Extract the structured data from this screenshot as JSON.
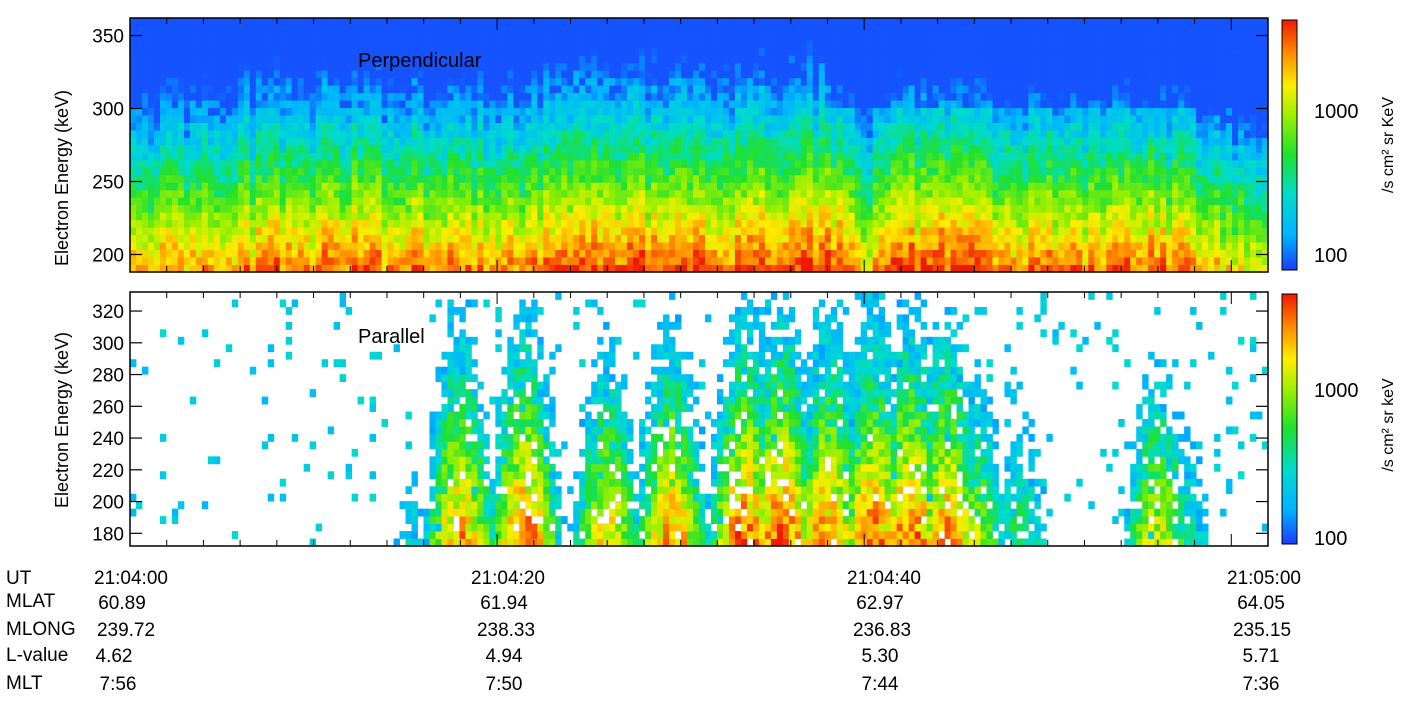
{
  "chart_data": [
    {
      "type": "heatmap",
      "panel_label": "Perpendicular",
      "ylabel": "Electron Energy (keV)",
      "ylim": [
        188,
        362
      ],
      "yticks": [
        200,
        250,
        300,
        350
      ],
      "xlim": [
        "21:04:00",
        "21:05:02"
      ],
      "colorbar": {
        "label": "/s cm² sr KeV",
        "scale": "log",
        "range": [
          100,
          3500
        ],
        "tick_labels": [
          "100",
          "1000"
        ]
      },
      "flux_profile_seconds": [
        0,
        4,
        8,
        12,
        16,
        20,
        24,
        28,
        32,
        36,
        38,
        40,
        42,
        44,
        48,
        52,
        56,
        60
      ],
      "flux_profile_low_energy": [
        1800,
        2200,
        2600,
        2800,
        2600,
        2200,
        2800,
        3000,
        2800,
        3400,
        3500,
        1800,
        3000,
        3200,
        2600,
        2400,
        2800,
        1500
      ]
    },
    {
      "type": "heatmap",
      "panel_label": "Parallel",
      "ylabel": "Electron Energy (keV)",
      "ylim": [
        172,
        332
      ],
      "yticks": [
        180,
        200,
        220,
        240,
        260,
        280,
        300,
        320
      ],
      "xlim": [
        "21:04:00",
        "21:05:02"
      ],
      "colorbar": {
        "label": "/s cm² sr keV",
        "scale": "log",
        "range": [
          100,
          3500
        ],
        "tick_labels": [
          "100",
          "1000"
        ]
      },
      "burst_times_seconds": [
        15.5,
        18,
        21.5,
        26,
        29.5,
        33.5,
        35.5,
        38,
        40.5,
        42.5,
        44.5,
        46,
        48.5,
        56,
        57.5
      ],
      "burst_peak_flux": [
        300,
        2500,
        3000,
        1800,
        2500,
        3200,
        3500,
        2800,
        3000,
        3200,
        2800,
        1200,
        600,
        1500,
        500
      ]
    }
  ],
  "orbit_table": {
    "row_labels": [
      "UT",
      "MLAT",
      "MLONG",
      "L-value",
      "MLT"
    ],
    "columns": [
      {
        "UT": "21:04:00",
        "MLAT": "60.89",
        "MLONG": "239.72",
        "L-value": "4.62",
        "MLT": "7:56"
      },
      {
        "UT": "21:04:20",
        "MLAT": "61.94",
        "MLONG": "238.33",
        "L-value": "4.94",
        "MLT": "7:50"
      },
      {
        "UT": "21:04:40",
        "MLAT": "62.97",
        "MLONG": "236.83",
        "L-value": "5.30",
        "MLT": "7:44"
      },
      {
        "UT": "21:05:00",
        "MLAT": "64.05",
        "MLONG": "235.15",
        "L-value": "5.71",
        "MLT": "7:36"
      }
    ]
  }
}
